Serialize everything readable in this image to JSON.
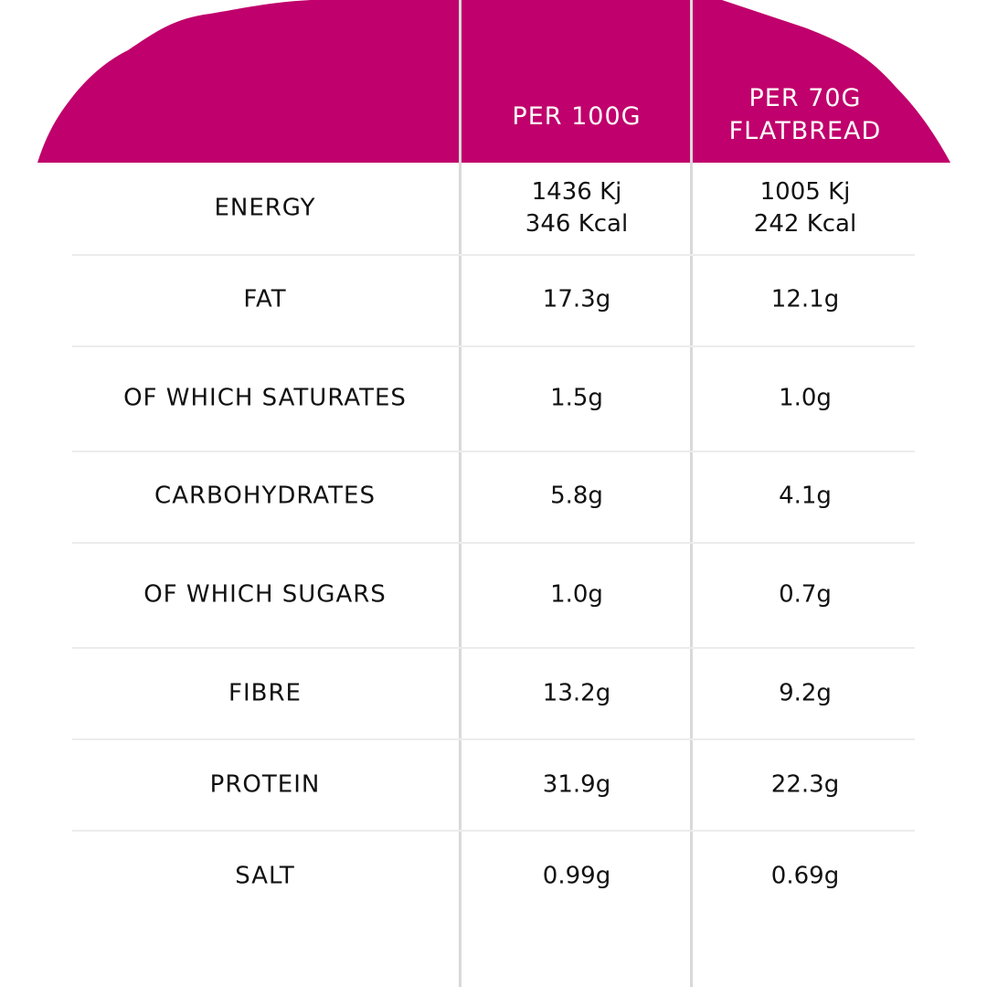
{
  "colors": {
    "header": "#C0006C",
    "divider": "#d9d9d9"
  },
  "header": {
    "col1": "PER 100G",
    "col2_line1": "PER 70G",
    "col2_line2": "FLATBREAD"
  },
  "rows": [
    {
      "label": "ENERGY",
      "per100_line1": "1436 Kj",
      "per100_line2": "346 Kcal",
      "per70_line1": "1005 Kj",
      "per70_line2": "242 Kcal"
    },
    {
      "label": "FAT",
      "per100": "17.3g",
      "per70": "12.1g"
    },
    {
      "label": "OF WHICH SATURATES",
      "per100": "1.5g",
      "per70": "1.0g"
    },
    {
      "label": "CARBOHYDRATES",
      "per100": "5.8g",
      "per70": "4.1g"
    },
    {
      "label": "OF WHICH SUGARS",
      "per100": "1.0g",
      "per70": "0.7g"
    },
    {
      "label": "FIBRE",
      "per100": "13.2g",
      "per70": "9.2g"
    },
    {
      "label": "PROTEIN",
      "per100": "31.9g",
      "per70": "22.3g"
    },
    {
      "label": "SALT",
      "per100": "0.99g",
      "per70": "0.69g"
    }
  ]
}
